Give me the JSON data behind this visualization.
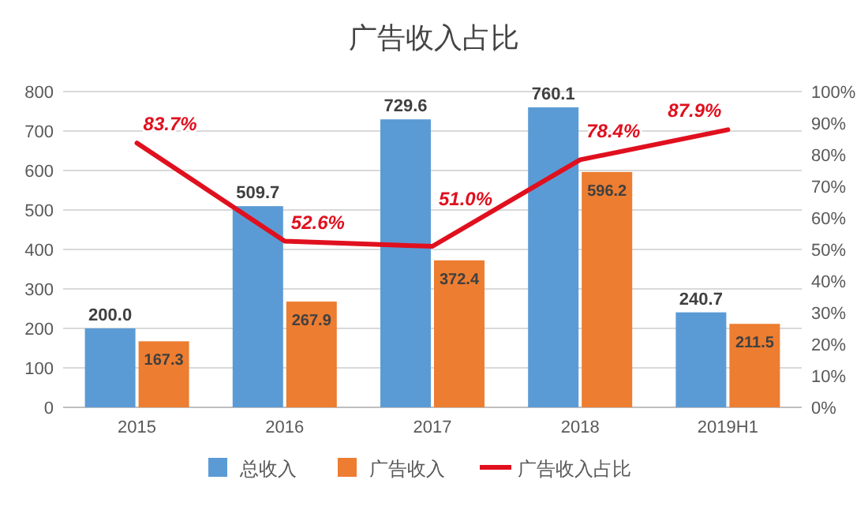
{
  "chart_data": {
    "type": "bar",
    "title": "广告收入占比",
    "categories": [
      "2015",
      "2016",
      "2017",
      "2018",
      "2019H1"
    ],
    "series": [
      {
        "name": "总收入",
        "color": "#5b9bd5",
        "values": [
          200.0,
          509.7,
          729.6,
          760.1,
          240.7
        ],
        "value_labels": [
          "200.0",
          "509.7",
          "729.6",
          "760.1",
          "240.7"
        ]
      },
      {
        "name": "广告收入",
        "color": "#ed7d31",
        "values": [
          167.3,
          267.9,
          372.4,
          596.2,
          211.5
        ],
        "value_labels": [
          "167.3",
          "267.9",
          "372.4",
          "596.2",
          "211.5"
        ]
      },
      {
        "name": "广告收入占比",
        "type": "line",
        "axis": "y2",
        "color": "#e0101e",
        "values": [
          83.7,
          52.6,
          51.0,
          78.4,
          87.9
        ],
        "value_labels": [
          "83.7%",
          "52.6%",
          "51.0%",
          "78.4%",
          "87.9%"
        ]
      }
    ],
    "ylim": [
      0,
      800
    ],
    "yticks": [
      0,
      100,
      200,
      300,
      400,
      500,
      600,
      700,
      800
    ],
    "y2lim": [
      0,
      100
    ],
    "y2ticks": [
      {
        "value": 0,
        "label": "0%"
      },
      {
        "value": 10,
        "label": "10%"
      },
      {
        "value": 20,
        "label": "20%"
      },
      {
        "value": 30,
        "label": "30%"
      },
      {
        "value": 40,
        "label": "40%"
      },
      {
        "value": 50,
        "label": "50%"
      },
      {
        "value": 60,
        "label": "60%"
      },
      {
        "value": 70,
        "label": "70%"
      },
      {
        "value": 80,
        "label": "80%"
      },
      {
        "value": 90,
        "label": "90%"
      },
      {
        "value": 100,
        "label": "100%"
      }
    ],
    "grid": "y",
    "legend": "bottom"
  }
}
